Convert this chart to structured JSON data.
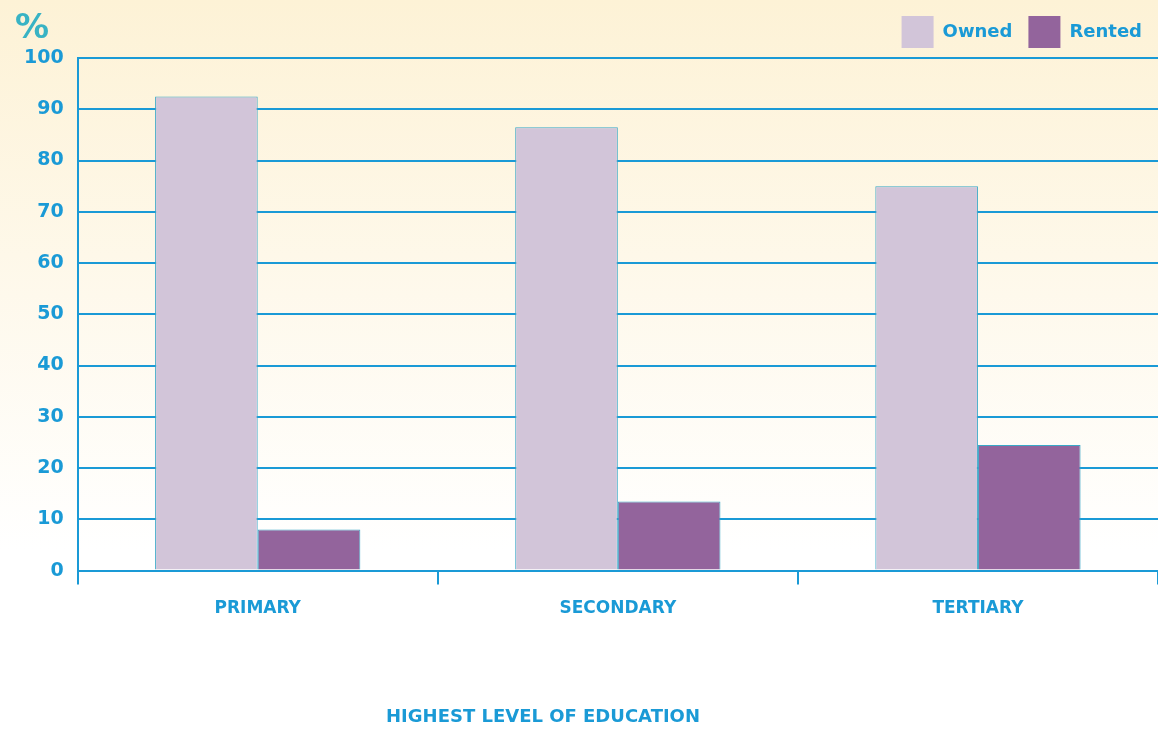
{
  "chart_data": {
    "type": "bar",
    "ylabel": "%",
    "xlabel": "HIGHEST LEVEL OF EDUCATION",
    "categories": [
      "PRIMARY",
      "SECONDARY",
      "TERTIARY"
    ],
    "series": [
      {
        "name": "Owned",
        "color": "#d2c5d9",
        "values": [
          92.5,
          86.5,
          75
        ]
      },
      {
        "name": "Rented",
        "color": "#93649c",
        "values": [
          8,
          13.5,
          24.5
        ]
      }
    ],
    "ylim": [
      0,
      100
    ],
    "yticks": [
      0,
      10,
      20,
      30,
      40,
      50,
      60,
      70,
      80,
      90,
      100
    ],
    "grid": "y",
    "legend": "top right"
  }
}
